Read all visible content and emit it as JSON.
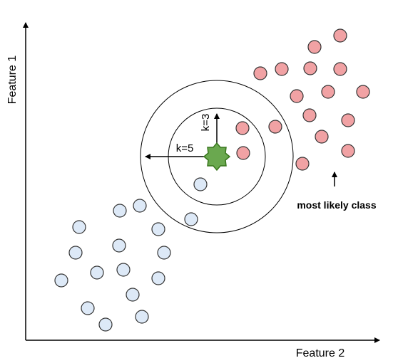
{
  "diagram": {
    "x_axis_label": "Feature 2",
    "y_axis_label": "Feature 1",
    "k_inner_label": "k=3",
    "k_outer_label": "k=5",
    "annotation": "most likely class",
    "classes": [
      {
        "name": "red-class",
        "fill": "#f1a2a4",
        "stroke": "#333333"
      },
      {
        "name": "blue-class",
        "fill": "#dde9f7",
        "stroke": "#333333"
      }
    ],
    "query_point": {
      "fill": "#6aa84f",
      "stroke": "#38761d"
    }
  }
}
